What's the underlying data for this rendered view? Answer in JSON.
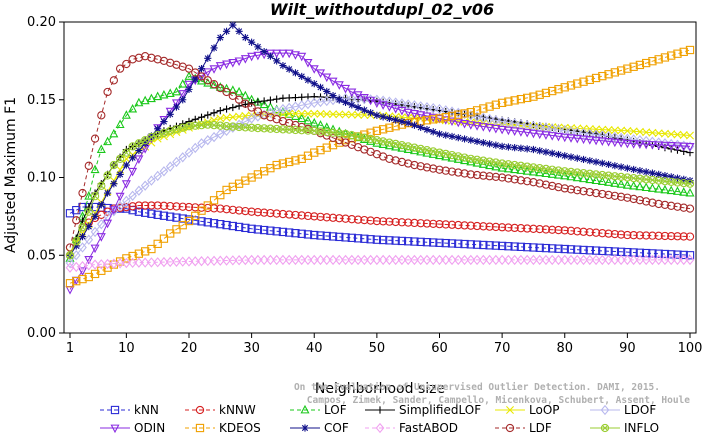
{
  "chart_data": {
    "type": "line",
    "title": "Wilt_withoutdupl_02_v06",
    "xlabel": "Neighborhood size",
    "ylabel": "Adjusted Maximum F1",
    "xlim": [
      1,
      100
    ],
    "ylim": [
      0,
      0.2
    ],
    "xticks": [
      "1",
      "10",
      "20",
      "30",
      "40",
      "50",
      "60",
      "70",
      "80",
      "90",
      "100"
    ],
    "yticks": [
      "0.00",
      "0.05",
      "0.10",
      "0.15",
      "0.20"
    ],
    "grid": false,
    "legend_position": "bottom",
    "watermark": [
      "Campos, Zimek, Sander, Campello, Micenkova, Schubert, Assent, Houle",
      "On the Evaluation of Unsupervised Outlier Detection. DAMI, 2015."
    ],
    "series": [
      {
        "name": "kNN",
        "color": "#2b2bd6",
        "marker": "square",
        "dashed": true,
        "points": [
          [
            1,
            0.077
          ],
          [
            3,
            0.081
          ],
          [
            5,
            0.081
          ],
          [
            8,
            0.08
          ],
          [
            10,
            0.08
          ],
          [
            12,
            0.078
          ],
          [
            15,
            0.076
          ],
          [
            20,
            0.073
          ],
          [
            25,
            0.07
          ],
          [
            30,
            0.067
          ],
          [
            35,
            0.065
          ],
          [
            40,
            0.063
          ],
          [
            50,
            0.06
          ],
          [
            60,
            0.058
          ],
          [
            70,
            0.056
          ],
          [
            80,
            0.054
          ],
          [
            90,
            0.052
          ],
          [
            100,
            0.05
          ]
        ]
      },
      {
        "name": "kNNW",
        "color": "#d62020",
        "marker": "circle",
        "dashed": true,
        "points": [
          [
            1,
            0.05
          ],
          [
            3,
            0.068
          ],
          [
            5,
            0.074
          ],
          [
            8,
            0.08
          ],
          [
            10,
            0.081
          ],
          [
            12,
            0.082
          ],
          [
            15,
            0.082
          ],
          [
            20,
            0.081
          ],
          [
            25,
            0.08
          ],
          [
            30,
            0.078
          ],
          [
            40,
            0.075
          ],
          [
            50,
            0.072
          ],
          [
            60,
            0.07
          ],
          [
            70,
            0.068
          ],
          [
            80,
            0.066
          ],
          [
            90,
            0.063
          ],
          [
            100,
            0.062
          ]
        ]
      },
      {
        "name": "LOF",
        "color": "#1ac81a",
        "marker": "triangle-up",
        "dashed": true,
        "points": [
          [
            1,
            0.048
          ],
          [
            2,
            0.06
          ],
          [
            3,
            0.075
          ],
          [
            4,
            0.088
          ],
          [
            5,
            0.105
          ],
          [
            6,
            0.118
          ],
          [
            8,
            0.128
          ],
          [
            10,
            0.14
          ],
          [
            12,
            0.148
          ],
          [
            15,
            0.152
          ],
          [
            18,
            0.155
          ],
          [
            20,
            0.165
          ],
          [
            22,
            0.162
          ],
          [
            25,
            0.158
          ],
          [
            28,
            0.155
          ],
          [
            30,
            0.15
          ],
          [
            35,
            0.142
          ],
          [
            40,
            0.135
          ],
          [
            45,
            0.128
          ],
          [
            50,
            0.122
          ],
          [
            55,
            0.118
          ],
          [
            60,
            0.114
          ],
          [
            65,
            0.11
          ],
          [
            70,
            0.106
          ],
          [
            80,
            0.101
          ],
          [
            90,
            0.095
          ],
          [
            100,
            0.09
          ]
        ]
      },
      {
        "name": "SimplifiedLOF",
        "color": "#000000",
        "marker": "plus",
        "dashed": false,
        "points": [
          [
            1,
            0.05
          ],
          [
            3,
            0.072
          ],
          [
            5,
            0.09
          ],
          [
            8,
            0.108
          ],
          [
            10,
            0.118
          ],
          [
            13,
            0.124
          ],
          [
            16,
            0.13
          ],
          [
            20,
            0.136
          ],
          [
            25,
            0.143
          ],
          [
            30,
            0.148
          ],
          [
            35,
            0.151
          ],
          [
            40,
            0.152
          ],
          [
            45,
            0.151
          ],
          [
            50,
            0.149
          ],
          [
            55,
            0.146
          ],
          [
            60,
            0.143
          ],
          [
            65,
            0.14
          ],
          [
            70,
            0.137
          ],
          [
            75,
            0.134
          ],
          [
            80,
            0.131
          ],
          [
            85,
            0.128
          ],
          [
            90,
            0.124
          ],
          [
            95,
            0.12
          ],
          [
            100,
            0.116
          ]
        ]
      },
      {
        "name": "LoOP",
        "color": "#e8e800",
        "marker": "x",
        "dashed": false,
        "points": [
          [
            1,
            0.052
          ],
          [
            4,
            0.07
          ],
          [
            8,
            0.098
          ],
          [
            10,
            0.112
          ],
          [
            15,
            0.125
          ],
          [
            20,
            0.132
          ],
          [
            25,
            0.138
          ],
          [
            30,
            0.14
          ],
          [
            35,
            0.141
          ],
          [
            40,
            0.141
          ],
          [
            50,
            0.14
          ],
          [
            60,
            0.137
          ],
          [
            70,
            0.134
          ],
          [
            80,
            0.132
          ],
          [
            90,
            0.13
          ],
          [
            100,
            0.127
          ]
        ]
      },
      {
        "name": "LDOF",
        "color": "#b8b8ee",
        "marker": "diamond",
        "dashed": false,
        "points": [
          [
            1,
            0.045
          ],
          [
            4,
            0.06
          ],
          [
            7,
            0.075
          ],
          [
            10,
            0.085
          ],
          [
            14,
            0.098
          ],
          [
            18,
            0.11
          ],
          [
            22,
            0.122
          ],
          [
            26,
            0.13
          ],
          [
            30,
            0.138
          ],
          [
            35,
            0.144
          ],
          [
            40,
            0.148
          ],
          [
            45,
            0.151
          ],
          [
            50,
            0.15
          ],
          [
            60,
            0.144
          ],
          [
            70,
            0.136
          ],
          [
            80,
            0.13
          ],
          [
            90,
            0.125
          ],
          [
            100,
            0.12
          ]
        ]
      },
      {
        "name": "ODIN",
        "color": "#8a2be2",
        "marker": "triangle-down",
        "dashed": false,
        "points": [
          [
            1,
            0.028
          ],
          [
            3,
            0.04
          ],
          [
            6,
            0.062
          ],
          [
            9,
            0.088
          ],
          [
            12,
            0.112
          ],
          [
            15,
            0.132
          ],
          [
            18,
            0.148
          ],
          [
            20,
            0.16
          ],
          [
            23,
            0.168
          ],
          [
            25,
            0.172
          ],
          [
            28,
            0.175
          ],
          [
            30,
            0.178
          ],
          [
            33,
            0.18
          ],
          [
            36,
            0.18
          ],
          [
            38,
            0.178
          ],
          [
            40,
            0.17
          ],
          [
            43,
            0.162
          ],
          [
            46,
            0.155
          ],
          [
            50,
            0.148
          ],
          [
            55,
            0.142
          ],
          [
            60,
            0.138
          ],
          [
            65,
            0.134
          ],
          [
            70,
            0.131
          ],
          [
            80,
            0.126
          ],
          [
            90,
            0.122
          ],
          [
            100,
            0.12
          ]
        ]
      },
      {
        "name": "KDEOS",
        "color": "#f0a000",
        "marker": "square",
        "dashed": true,
        "points": [
          [
            1,
            0.032
          ],
          [
            4,
            0.036
          ],
          [
            7,
            0.042
          ],
          [
            10,
            0.048
          ],
          [
            14,
            0.054
          ],
          [
            17,
            0.064
          ],
          [
            20,
            0.072
          ],
          [
            23,
            0.082
          ],
          [
            26,
            0.092
          ],
          [
            30,
            0.1
          ],
          [
            34,
            0.108
          ],
          [
            38,
            0.112
          ],
          [
            40,
            0.116
          ],
          [
            45,
            0.124
          ],
          [
            50,
            0.13
          ],
          [
            55,
            0.135
          ],
          [
            60,
            0.138
          ],
          [
            65,
            0.142
          ],
          [
            70,
            0.148
          ],
          [
            75,
            0.152
          ],
          [
            80,
            0.158
          ],
          [
            85,
            0.164
          ],
          [
            90,
            0.17
          ],
          [
            95,
            0.176
          ],
          [
            100,
            0.182
          ]
        ]
      },
      {
        "name": "COF",
        "color": "#10108a",
        "marker": "asterisk",
        "dashed": false,
        "points": [
          [
            1,
            0.05
          ],
          [
            3,
            0.062
          ],
          [
            5,
            0.075
          ],
          [
            7,
            0.09
          ],
          [
            10,
            0.108
          ],
          [
            13,
            0.122
          ],
          [
            16,
            0.136
          ],
          [
            19,
            0.15
          ],
          [
            22,
            0.17
          ],
          [
            25,
            0.19
          ],
          [
            27,
            0.198
          ],
          [
            29,
            0.19
          ],
          [
            31,
            0.184
          ],
          [
            33,
            0.178
          ],
          [
            35,
            0.172
          ],
          [
            38,
            0.165
          ],
          [
            41,
            0.158
          ],
          [
            44,
            0.15
          ],
          [
            47,
            0.145
          ],
          [
            50,
            0.14
          ],
          [
            55,
            0.135
          ],
          [
            60,
            0.128
          ],
          [
            65,
            0.124
          ],
          [
            70,
            0.12
          ],
          [
            75,
            0.118
          ],
          [
            80,
            0.114
          ],
          [
            85,
            0.11
          ],
          [
            90,
            0.106
          ],
          [
            95,
            0.102
          ],
          [
            100,
            0.098
          ]
        ]
      },
      {
        "name": "FastABOD",
        "color": "#f0a0f0",
        "marker": "diamond",
        "dashed": true,
        "points": [
          [
            1,
            0.042
          ],
          [
            5,
            0.044
          ],
          [
            10,
            0.045
          ],
          [
            20,
            0.046
          ],
          [
            30,
            0.047
          ],
          [
            40,
            0.047
          ],
          [
            50,
            0.047
          ],
          [
            60,
            0.047
          ],
          [
            70,
            0.047
          ],
          [
            80,
            0.047
          ],
          [
            90,
            0.047
          ],
          [
            100,
            0.047
          ]
        ]
      },
      {
        "name": "LDF",
        "color": "#a52a2a",
        "marker": "circle",
        "dashed": true,
        "points": [
          [
            1,
            0.055
          ],
          [
            3,
            0.09
          ],
          [
            5,
            0.125
          ],
          [
            7,
            0.155
          ],
          [
            9,
            0.17
          ],
          [
            11,
            0.176
          ],
          [
            13,
            0.178
          ],
          [
            16,
            0.175
          ],
          [
            20,
            0.17
          ],
          [
            24,
            0.16
          ],
          [
            28,
            0.15
          ],
          [
            32,
            0.14
          ],
          [
            36,
            0.135
          ],
          [
            40,
            0.13
          ],
          [
            44,
            0.124
          ],
          [
            48,
            0.118
          ],
          [
            52,
            0.112
          ],
          [
            56,
            0.108
          ],
          [
            60,
            0.105
          ],
          [
            65,
            0.102
          ],
          [
            70,
            0.1
          ],
          [
            75,
            0.097
          ],
          [
            80,
            0.093
          ],
          [
            85,
            0.09
          ],
          [
            90,
            0.087
          ],
          [
            95,
            0.083
          ],
          [
            100,
            0.08
          ]
        ]
      },
      {
        "name": "INFLO",
        "color": "#9acd32",
        "marker": "circle-x",
        "dashed": false,
        "points": [
          [
            1,
            0.05
          ],
          [
            3,
            0.068
          ],
          [
            5,
            0.088
          ],
          [
            8,
            0.108
          ],
          [
            11,
            0.12
          ],
          [
            14,
            0.126
          ],
          [
            17,
            0.13
          ],
          [
            20,
            0.133
          ],
          [
            23,
            0.134
          ],
          [
            26,
            0.133
          ],
          [
            30,
            0.132
          ],
          [
            35,
            0.131
          ],
          [
            40,
            0.13
          ],
          [
            45,
            0.128
          ],
          [
            50,
            0.124
          ],
          [
            55,
            0.12
          ],
          [
            60,
            0.116
          ],
          [
            65,
            0.112
          ],
          [
            70,
            0.109
          ],
          [
            80,
            0.104
          ],
          [
            90,
            0.1
          ],
          [
            100,
            0.096
          ]
        ]
      }
    ]
  }
}
